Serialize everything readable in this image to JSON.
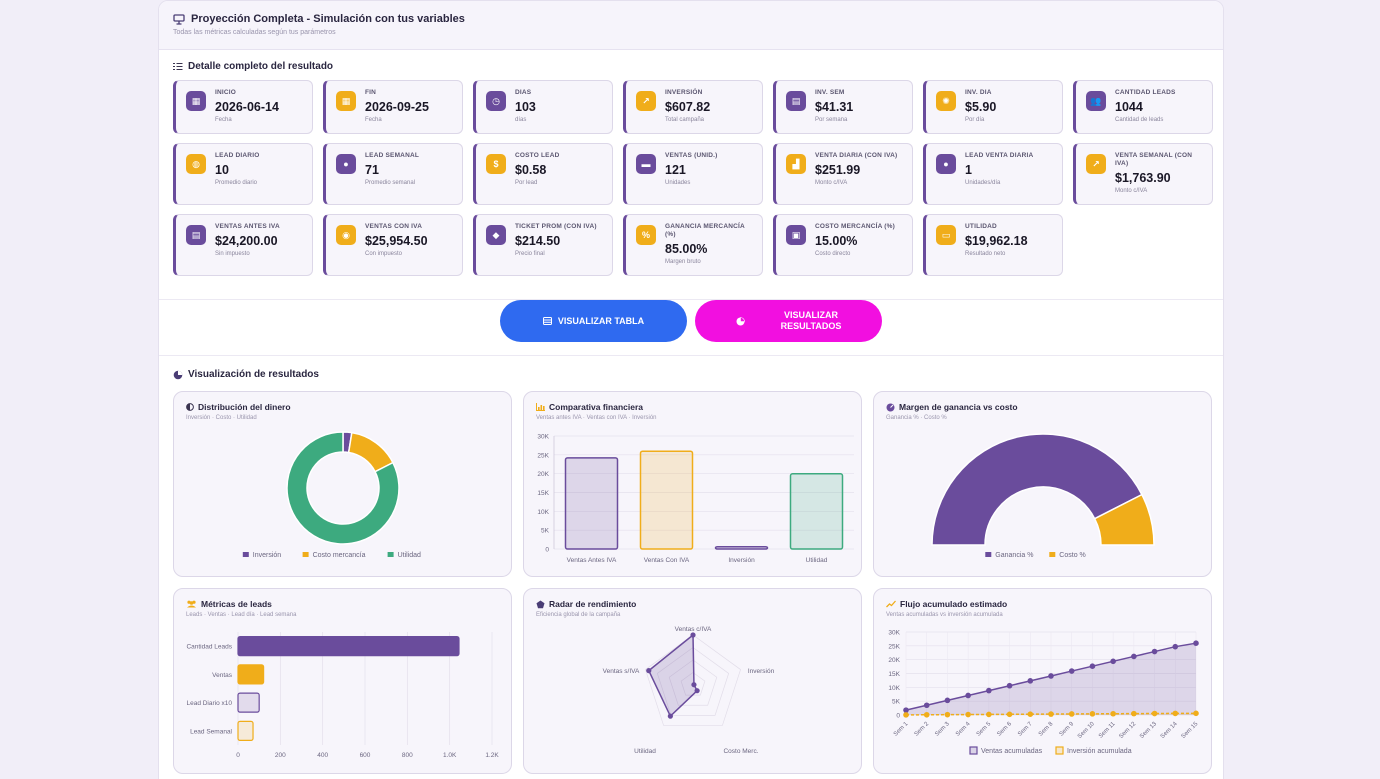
{
  "header": {
    "title": "Proyección Completa - Simulación con tus variables",
    "subtitle": "Todas las métricas calculadas según tus parámetros"
  },
  "details": {
    "title": "Detalle completo del resultado",
    "cards": [
      {
        "label": "INICIO",
        "value": "2026-06-14",
        "caption": "Fecha",
        "icon": "calendar-icon",
        "color": "p"
      },
      {
        "label": "FIN",
        "value": "2026-09-25",
        "caption": "Fecha",
        "icon": "calendar-icon",
        "color": "y"
      },
      {
        "label": "DIAS",
        "value": "103",
        "caption": "días",
        "icon": "clock-icon",
        "color": "p"
      },
      {
        "label": "INVERSIÓN",
        "value": "$607.82",
        "caption": "Total campaña",
        "icon": "trend-icon",
        "color": "y"
      },
      {
        "label": "INV. SEM",
        "value": "$41.31",
        "caption": "Por semana",
        "icon": "calendar-week-icon",
        "color": "p"
      },
      {
        "label": "INV. DIA",
        "value": "$5.90",
        "caption": "Por día",
        "icon": "sun-icon",
        "color": "y"
      },
      {
        "label": "CANTIDAD LEADS",
        "value": "1044",
        "caption": "Cantidad de leads",
        "icon": "users-icon",
        "color": "p"
      },
      {
        "label": "LEAD DIARIO",
        "value": "10",
        "caption": "Promedio diario",
        "icon": "chat-icon",
        "color": "y"
      },
      {
        "label": "LEAD SEMANAL",
        "value": "71",
        "caption": "Promedio semanal",
        "icon": "comment-icon",
        "color": "p"
      },
      {
        "label": "COSTO LEAD",
        "value": "$0.58",
        "caption": "Por lead",
        "icon": "dollar-icon",
        "color": "y"
      },
      {
        "label": "VENTAS (UNID.)",
        "value": "121",
        "caption": "Unidades",
        "icon": "cart-icon",
        "color": "p"
      },
      {
        "label": "VENTA DIARIA (CON IVA)",
        "value": "$251.99",
        "caption": "Monto c/IVA",
        "icon": "chart-icon",
        "color": "y"
      },
      {
        "label": "LEAD VENTA DIARIA",
        "value": "1",
        "caption": "Unidades/día",
        "icon": "user-icon",
        "color": "p"
      },
      {
        "label": "VENTA SEMANAL (CON IVA)",
        "value": "$1,763.90",
        "caption": "Monto c/IVA",
        "icon": "chart-line-icon",
        "color": "y"
      },
      {
        "label": "VENTAS ANTES IVA",
        "value": "$24,200.00",
        "caption": "Sin impuesto",
        "icon": "receipt-icon",
        "color": "p"
      },
      {
        "label": "VENTAS CON IVA",
        "value": "$25,954.50",
        "caption": "Con impuesto",
        "icon": "coins-icon",
        "color": "y"
      },
      {
        "label": "TICKET PROM (CON IVA)",
        "value": "$214.50",
        "caption": "Precio final",
        "icon": "tag-icon",
        "color": "p"
      },
      {
        "label": "GANANCIA MERCANCÍA (%)",
        "value": "85.00%",
        "caption": "Margen bruto",
        "icon": "percent-icon",
        "color": "y"
      },
      {
        "label": "COSTO MERCANCÍA (%)",
        "value": "15.00%",
        "caption": "Costo directo",
        "icon": "boxes-icon",
        "color": "p"
      },
      {
        "label": "UTILIDAD",
        "value": "$19,962.18",
        "caption": "Resultado neto",
        "icon": "money-icon",
        "color": "y"
      }
    ]
  },
  "actions": {
    "table_label": "VISUALIZAR TABLA",
    "results_label_1": "VISUALIZAR",
    "results_label_2": "RESULTADOS"
  },
  "viz": {
    "title": "Visualización de resultados"
  },
  "colors": {
    "purple": "#6a4c9c",
    "yellow": "#f0ad1a",
    "green": "#3daa7f",
    "blue": "#2f6af0",
    "pink": "#f20fe0"
  },
  "chart_data": [
    {
      "type": "pie",
      "title": "Distribución del dinero",
      "subtitle": "Inversión · Costo · Utilidad",
      "labels": [
        "Inversión",
        "Costo mercancía",
        "Utilidad"
      ],
      "values": [
        607.82,
        3630,
        19962.18
      ],
      "colors": [
        "#6a4c9c",
        "#f0ad1a",
        "#3daa7f"
      ],
      "legend": "bottom"
    },
    {
      "type": "bar",
      "title": "Comparativa financiera",
      "subtitle": "Ventas antes IVA · Ventas con IVA · Inversión",
      "categories": [
        "Ventas Antes IVA",
        "Ventas Con IVA",
        "Inversión",
        "Utilidad"
      ],
      "values": [
        24200,
        25954.5,
        607.82,
        19962.18
      ],
      "ylim": [
        0,
        30000
      ],
      "yticks": [
        "0",
        "5K",
        "10K",
        "15K",
        "20K",
        "25K",
        "30K"
      ],
      "colors": [
        "#6a4c9c",
        "#f0ad1a",
        "#6a4c9c",
        "#3daa7f"
      ]
    },
    {
      "type": "pie",
      "title": "Margen de ganancia vs costo",
      "subtitle": "Ganancia % · Costo %",
      "labels": [
        "Ganancia %",
        "Costo %"
      ],
      "values": [
        85,
        15
      ],
      "colors": [
        "#6a4c9c",
        "#f0ad1a"
      ],
      "legend": "bottom"
    },
    {
      "type": "bar",
      "title": "Métricas de leads",
      "subtitle": "Leads · Ventas · Lead día · Lead semana",
      "categories": [
        "Cantidad Leads",
        "Ventas",
        "Lead Diario x10",
        "Lead Semanal"
      ],
      "values": [
        1044,
        121,
        100,
        71
      ],
      "xlim": [
        0,
        1200
      ],
      "xticks": [
        "0",
        "200",
        "400",
        "600",
        "800",
        "1.0K",
        "1.2K"
      ],
      "colors": [
        "#6a4c9c",
        "#f0ad1a",
        "#6a4c9c",
        "#f0ad1a"
      ]
    },
    {
      "type": "radar",
      "title": "Radar de rendimiento",
      "subtitle": "Eficiencia global de la campaña",
      "labels": [
        "Ventas c/IVA",
        "Inversión",
        "Costo Merc.",
        "Utilidad",
        "Ventas s/IVA"
      ],
      "values": [
        100,
        2,
        14,
        77,
        93
      ],
      "max": 100
    },
    {
      "type": "line",
      "title": "Flujo acumulado estimado",
      "subtitle": "Ventas acumuladas vs inversión acumulada",
      "categories": [
        "Sem 1",
        "Sem 2",
        "Sem 3",
        "Sem 4",
        "Sem 5",
        "Sem 6",
        "Sem 7",
        "Sem 8",
        "Sem 9",
        "Sem 10",
        "Sem 11",
        "Sem 12",
        "Sem 13",
        "Sem 14",
        "Sem 15"
      ],
      "series": [
        {
          "name": "Ventas acumuladas",
          "values": [
            1764,
            3528,
            5292,
            7056,
            8820,
            10583,
            12347,
            14111,
            15875,
            17639,
            19403,
            21167,
            22931,
            24695,
            25954
          ]
        },
        {
          "name": "Inversión acumulada",
          "values": [
            41,
            83,
            124,
            165,
            207,
            248,
            289,
            330,
            372,
            413,
            454,
            496,
            537,
            578,
            608
          ]
        }
      ],
      "ylim": [
        0,
        30000
      ],
      "yticks": [
        "0",
        "5K",
        "10K",
        "15K",
        "20K",
        "25K",
        "30K"
      ],
      "legend": "bottom"
    }
  ]
}
